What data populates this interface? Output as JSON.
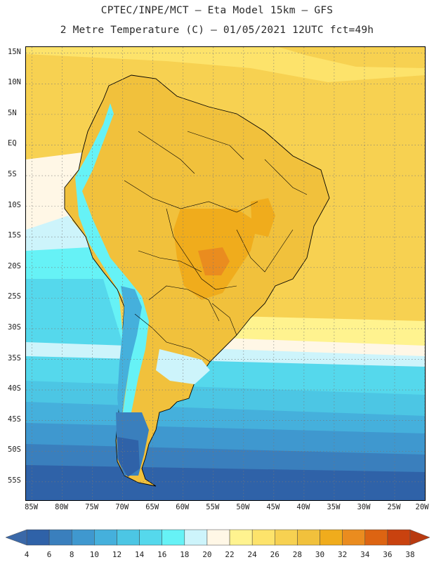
{
  "header": {
    "line1": "CPTEC/INPE/MCT –  Eta Model 15km – GFS",
    "line2": "2 Metre Temperature (C) – 01/05/2021 12UTC fct=49h"
  },
  "map": {
    "region": "South America",
    "lon_range": [
      -86,
      -20
    ],
    "lat_range": [
      -58,
      16
    ],
    "latitude_labels": [
      {
        "label": "15N",
        "lat": 15
      },
      {
        "label": "10N",
        "lat": 10
      },
      {
        "label": "5N",
        "lat": 5
      },
      {
        "label": "EQ",
        "lat": 0
      },
      {
        "label": "5S",
        "lat": -5
      },
      {
        "label": "10S",
        "lat": -10
      },
      {
        "label": "15S",
        "lat": -15
      },
      {
        "label": "20S",
        "lat": -20
      },
      {
        "label": "25S",
        "lat": -25
      },
      {
        "label": "30S",
        "lat": -30
      },
      {
        "label": "35S",
        "lat": -35
      },
      {
        "label": "40S",
        "lat": -40
      },
      {
        "label": "45S",
        "lat": -45
      },
      {
        "label": "50S",
        "lat": -50
      },
      {
        "label": "55S",
        "lat": -55
      }
    ],
    "longitude_labels": [
      {
        "label": "85W",
        "lon": -85
      },
      {
        "label": "80W",
        "lon": -80
      },
      {
        "label": "75W",
        "lon": -75
      },
      {
        "label": "70W",
        "lon": -70
      },
      {
        "label": "65W",
        "lon": -65
      },
      {
        "label": "60W",
        "lon": -60
      },
      {
        "label": "55W",
        "lon": -55
      },
      {
        "label": "50W",
        "lon": -50
      },
      {
        "label": "45W",
        "lon": -45
      },
      {
        "label": "40W",
        "lon": -40
      },
      {
        "label": "35W",
        "lon": -35
      },
      {
        "label": "30W",
        "lon": -30
      },
      {
        "label": "25W",
        "lon": -25
      },
      {
        "label": "20W",
        "lon": -20
      }
    ]
  },
  "colorbar": {
    "labels": [
      "4",
      "6",
      "8",
      "10",
      "12",
      "14",
      "16",
      "18",
      "20",
      "22",
      "24",
      "26",
      "28",
      "30",
      "32",
      "34",
      "36",
      "38"
    ],
    "low_color": "#3a68a8",
    "high_color": "#b83a10",
    "colors": [
      "#2f62a8",
      "#3a7fbd",
      "#3f98cf",
      "#45b0dc",
      "#4cc6e4",
      "#55d8ec",
      "#66f2f6",
      "#cdf4fb",
      "#fff7e6",
      "#fff38f",
      "#fde36b",
      "#f7d151",
      "#f1c13c",
      "#f0ac1c",
      "#ea8c1f",
      "#dd6412",
      "#c9420f"
    ]
  }
}
